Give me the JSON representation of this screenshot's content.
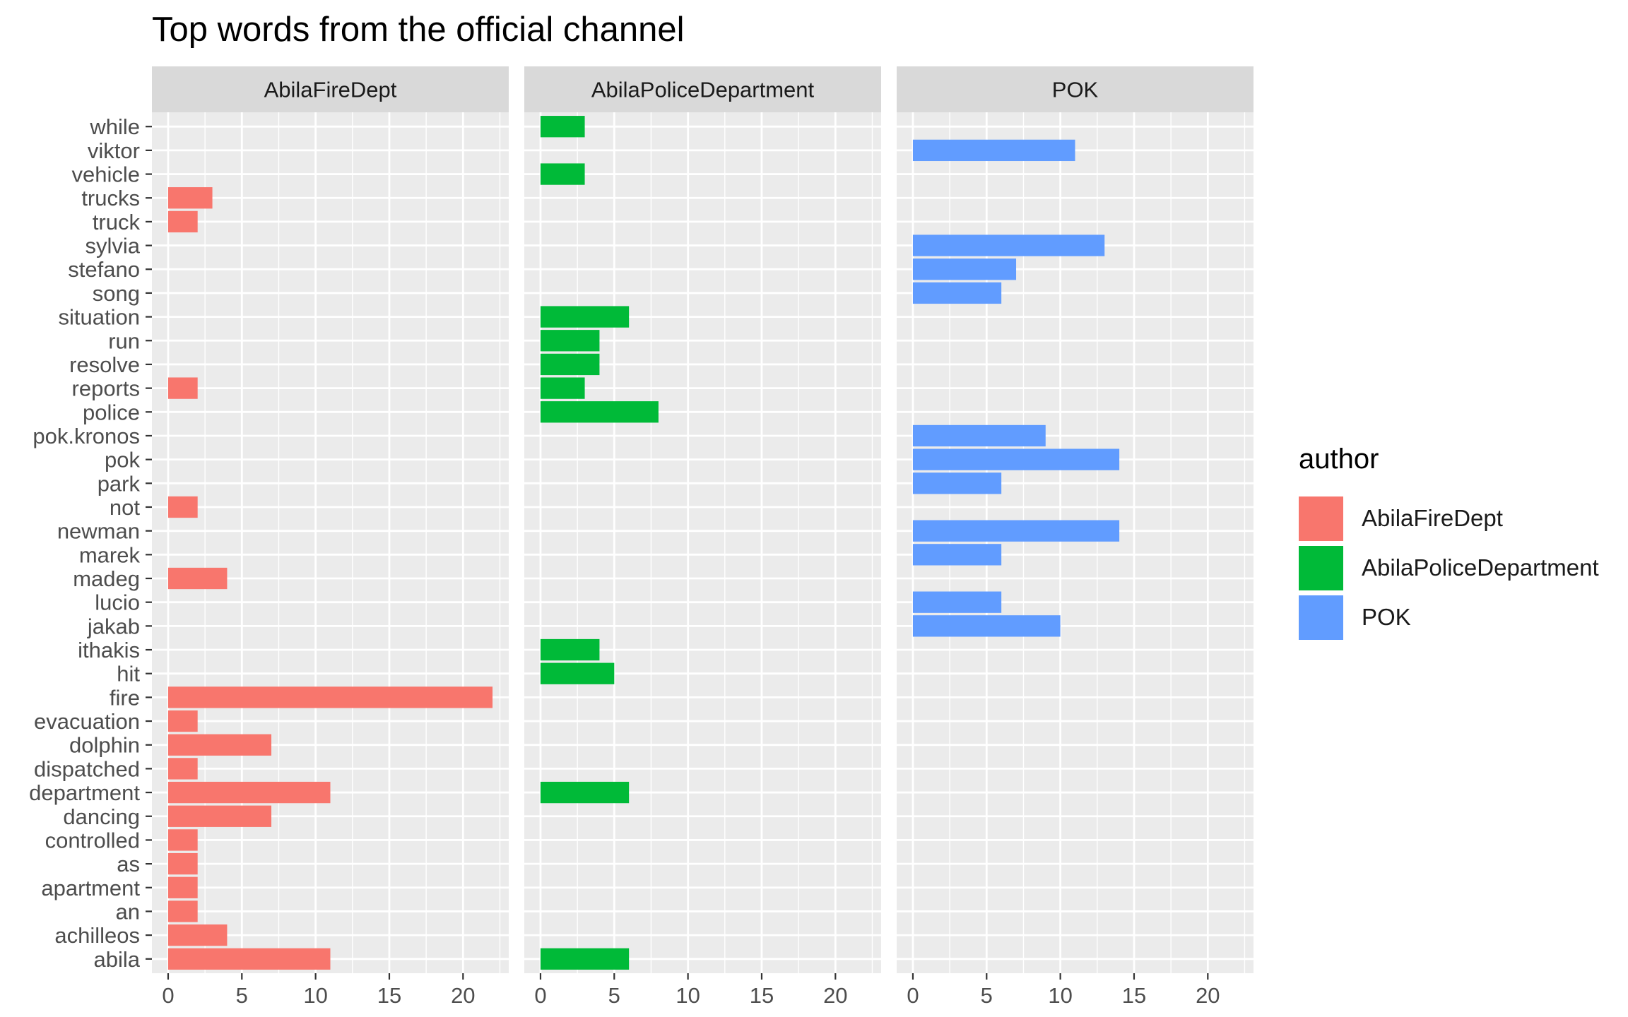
{
  "chart_data": {
    "type": "bar",
    "orientation": "horizontal",
    "faceted": true,
    "title": "Top words from the official channel",
    "xlabel": "",
    "ylabel": "",
    "xlim": [
      -1.1,
      23.1
    ],
    "x_ticks": [
      0,
      5,
      10,
      15,
      20
    ],
    "grid": true,
    "legend": {
      "title": "author",
      "placement": "right"
    },
    "categories": [
      "abila",
      "achilleos",
      "an",
      "apartment",
      "as",
      "controlled",
      "dancing",
      "department",
      "dispatched",
      "dolphin",
      "evacuation",
      "fire",
      "hit",
      "ithakis",
      "jakab",
      "lucio",
      "madeg",
      "marek",
      "newman",
      "not",
      "park",
      "pok",
      "pok.kronos",
      "police",
      "reports",
      "resolve",
      "run",
      "situation",
      "song",
      "stefano",
      "sylvia",
      "truck",
      "trucks",
      "vehicle",
      "viktor",
      "while"
    ],
    "series": [
      {
        "name": "AbilaFireDept",
        "color": "#F8766D",
        "values": {
          "abila": 11,
          "achilleos": 4,
          "an": 2,
          "apartment": 2,
          "as": 2,
          "controlled": 2,
          "dancing": 7,
          "department": 11,
          "dispatched": 2,
          "dolphin": 7,
          "evacuation": 2,
          "fire": 22,
          "madeg": 4,
          "not": 2,
          "reports": 2,
          "truck": 2,
          "trucks": 3
        }
      },
      {
        "name": "AbilaPoliceDepartment",
        "color": "#00BA38",
        "values": {
          "abila": 6,
          "department": 6,
          "hit": 5,
          "ithakis": 4,
          "police": 8,
          "reports": 3,
          "resolve": 4,
          "run": 4,
          "situation": 6,
          "vehicle": 3,
          "while": 3
        }
      },
      {
        "name": "POK",
        "color": "#619CFF",
        "values": {
          "jakab": 10,
          "lucio": 6,
          "marek": 6,
          "newman": 14,
          "park": 6,
          "pok": 14,
          "pok.kronos": 9,
          "song": 6,
          "stefano": 7,
          "sylvia": 13,
          "viktor": 11
        }
      }
    ]
  }
}
